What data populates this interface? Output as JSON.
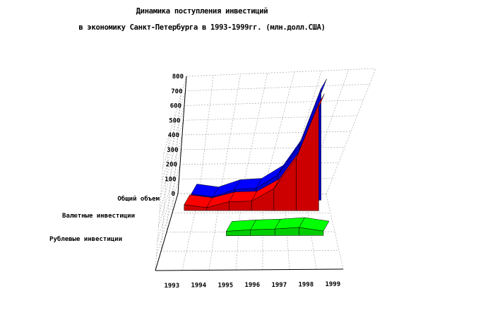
{
  "chart_data": {
    "type": "area",
    "title": "Динамика поступления инвестиций",
    "subtitle": "в экономику Санкт-Петербурга в 1993-1999гг. (млн.долл.США)",
    "categories": [
      "1993",
      "1994",
      "1995",
      "1996",
      "1997",
      "1998",
      "1999"
    ],
    "z_ticks": [
      "800",
      "700",
      "600",
      "500",
      "400",
      "300",
      "200",
      "100",
      "0"
    ],
    "zlim": [
      0,
      800
    ],
    "grid": true,
    "legend": "none",
    "series": [
      {
        "name": "Общий объем",
        "color": "#0000ff",
        "values": [
          40,
          20,
          70,
          80,
          170,
          380,
          760
        ]
      },
      {
        "name": "Валютные инвестиции",
        "color": "#ff0000",
        "values": [
          40,
          20,
          60,
          65,
          150,
          360,
          730
        ]
      },
      {
        "name": "Рублевые инвестиции",
        "color": "#00ff00",
        "values": [
          null,
          null,
          30,
          40,
          45,
          55,
          30
        ]
      }
    ]
  }
}
